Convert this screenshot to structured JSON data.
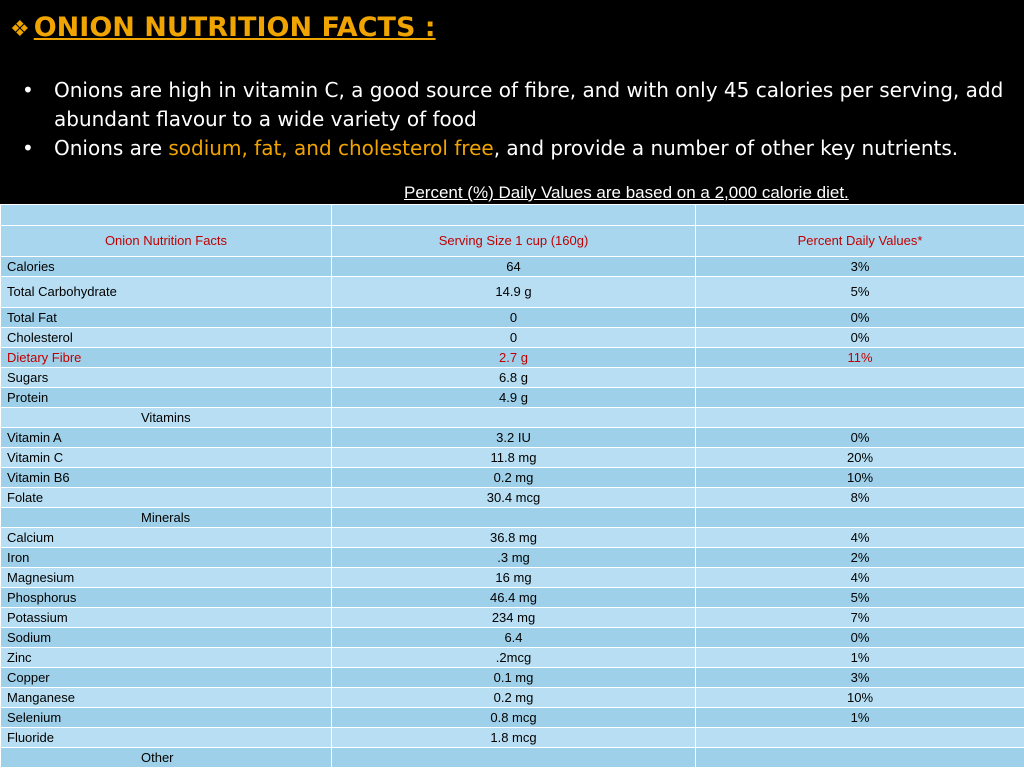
{
  "title": {
    "bullet_glyph": "❖",
    "text": "ONION NUTRITION FACTS :"
  },
  "bullets": [
    {
      "text_before": "Onions are high in vitamin C, a good source of fibre, and with only 45 calories per serving, add abundant flavour to a wide variety of food",
      "highlight": "",
      "text_after": ""
    },
    {
      "text_before": " Onions are ",
      "highlight": "sodium, fat, and cholesterol free",
      "text_after": ", and provide a number of other key nutrients."
    }
  ],
  "daily_value_note": "Percent (%) Daily Values are based on a 2,000 calorie diet.",
  "colors": {
    "accent": "#f0a400",
    "red_text": "#c00000",
    "table_bg": "#a8d6ee"
  },
  "table": {
    "headers": [
      "Onion Nutrition Facts",
      "Serving Size 1 cup (160g)",
      "Percent Daily Values*"
    ],
    "rows": [
      {
        "name": "Calories",
        "serving": "64",
        "dv": "3%",
        "type": "row"
      },
      {
        "name": "Total Carbohydrate",
        "serving": "14.9 g",
        "dv": "5%",
        "type": "tall"
      },
      {
        "name": "Total Fat",
        "serving": "0",
        "dv": "0%",
        "type": "row"
      },
      {
        "name": "Cholesterol",
        "serving": "0",
        "dv": "0%",
        "type": "row"
      },
      {
        "name": "Dietary Fibre",
        "serving": "2.7 g",
        "dv": "11%",
        "type": "red"
      },
      {
        "name": "Sugars",
        "serving": "6.8 g",
        "dv": "",
        "type": "row"
      },
      {
        "name": "Protein",
        "serving": "4.9 g",
        "dv": "",
        "type": "row"
      },
      {
        "name": "Vitamins",
        "serving": "",
        "dv": "",
        "type": "section"
      },
      {
        "name": "Vitamin A",
        "serving": "3.2 IU",
        "dv": "0%",
        "type": "row"
      },
      {
        "name": "Vitamin C",
        "serving": "11.8 mg",
        "dv": "20%",
        "type": "row"
      },
      {
        "name": "Vitamin B6",
        "serving": "0.2 mg",
        "dv": "10%",
        "type": "row"
      },
      {
        "name": "Folate",
        "serving": "30.4 mcg",
        "dv": "8%",
        "type": "row"
      },
      {
        "name": "Minerals",
        "serving": "",
        "dv": "",
        "type": "section"
      },
      {
        "name": "Calcium",
        "serving": "36.8 mg",
        "dv": "4%",
        "type": "row"
      },
      {
        "name": "Iron",
        "serving": ".3 mg",
        "dv": "2%",
        "type": "row"
      },
      {
        "name": "Magnesium",
        "serving": "16 mg",
        "dv": "4%",
        "type": "row"
      },
      {
        "name": "Phosphorus",
        "serving": "46.4 mg",
        "dv": "5%",
        "type": "row"
      },
      {
        "name": "Potassium",
        "serving": "234 mg",
        "dv": "7%",
        "type": "row"
      },
      {
        "name": "Sodium",
        "serving": "6.4",
        "dv": "0%",
        "type": "row"
      },
      {
        "name": "Zinc",
        "serving": ".2mcg",
        "dv": "1%",
        "type": "row"
      },
      {
        "name": "Copper",
        "serving": "0.1 mg",
        "dv": "3%",
        "type": "row"
      },
      {
        "name": "Manganese",
        "serving": "0.2 mg",
        "dv": "10%",
        "type": "row"
      },
      {
        "name": "Selenium",
        "serving": "0.8 mcg",
        "dv": "1%",
        "type": "row"
      },
      {
        "name": "Fluoride",
        "serving": "1.8 mcg",
        "dv": "",
        "type": "row"
      },
      {
        "name": "Other",
        "serving": "",
        "dv": "",
        "type": "section"
      }
    ]
  }
}
